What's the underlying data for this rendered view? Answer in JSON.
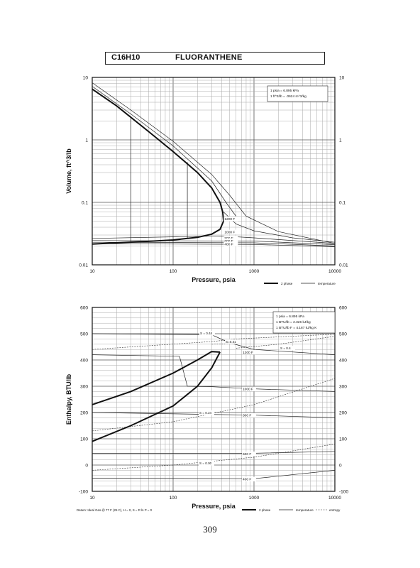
{
  "header": {
    "formula": "C16H10",
    "name": "FLUORANTHENE"
  },
  "page_number": "309",
  "chart_data": [
    {
      "type": "line",
      "title": "",
      "xlabel": "Pressure,  psia",
      "ylabel": "Volume, ft^3/lb",
      "x_scale": "log",
      "y_scale": "log",
      "xlim": [
        10,
        10000
      ],
      "ylim": [
        0.01,
        10
      ],
      "x_ticks": [
        "10",
        "100",
        "1000",
        "10000"
      ],
      "y_ticks_left": [
        "10",
        "1",
        "0.1",
        "0.01"
      ],
      "y_ticks_right": [
        "10",
        "1",
        "0.1",
        "0.01"
      ],
      "conversions": [
        "1 psia  =  6.895 kPa",
        "1 ft^3/lb  =  .0624 m^3/kg"
      ],
      "legend": [
        "2 phase",
        "temperature"
      ],
      "dome": {
        "liquid": [
          [
            10,
            0.0215
          ],
          [
            20,
            0.0225
          ],
          [
            50,
            0.0238
          ],
          [
            100,
            0.025
          ],
          [
            200,
            0.0275
          ],
          [
            300,
            0.031
          ],
          [
            380,
            0.037
          ],
          [
            420,
            0.05
          ]
        ],
        "vapor": [
          [
            420,
            0.05
          ],
          [
            410,
            0.07
          ],
          [
            380,
            0.1
          ],
          [
            300,
            0.17
          ],
          [
            200,
            0.3
          ],
          [
            100,
            0.65
          ],
          [
            50,
            1.35
          ],
          [
            20,
            3.5
          ],
          [
            10,
            6.5
          ]
        ]
      },
      "series": [
        {
          "label": "1200 F",
          "points": [
            [
              420,
              0.07
            ],
            [
              600,
              0.045
            ],
            [
              1000,
              0.035
            ],
            [
              3000,
              0.027
            ],
            [
              10000,
              0.023
            ]
          ]
        },
        {
          "label": "1000 F",
          "points": [
            [
              10,
              0.0265
            ],
            [
              400,
              0.029
            ],
            [
              1000,
              0.027
            ],
            [
              10000,
              0.022
            ]
          ]
        },
        {
          "label": "800 F",
          "points": [
            [
              10,
              0.0245
            ],
            [
              1000,
              0.024
            ],
            [
              10000,
              0.021
            ]
          ]
        },
        {
          "label": "600 F",
          "points": [
            [
              10,
              0.023
            ],
            [
              1000,
              0.0225
            ],
            [
              10000,
              0.02
            ]
          ]
        },
        {
          "label": "400 F",
          "points": [
            [
              10,
              0.0218
            ],
            [
              1000,
              0.0212
            ],
            [
              10000,
              0.0195
            ]
          ]
        }
      ],
      "isotherm_vapor": [
        {
          "points": [
            [
              10,
              8.2
            ],
            [
              30,
              3.0
            ],
            [
              100,
              0.95
            ],
            [
              300,
              0.28
            ],
            [
              500,
              0.13
            ],
            [
              800,
              0.06
            ],
            [
              2000,
              0.034
            ],
            [
              10000,
              0.022
            ]
          ]
        },
        {
          "points": [
            [
              10,
              7.2
            ],
            [
              30,
              2.6
            ],
            [
              100,
              0.8
            ],
            [
              300,
              0.22
            ],
            [
              450,
              0.1
            ],
            [
              600,
              0.06
            ]
          ]
        }
      ],
      "verticals": [
        {
          "x": 30,
          "from": 0.0232,
          "to": 2.2
        },
        {
          "x": 150,
          "from": 0.0262,
          "to": 0.44
        }
      ]
    },
    {
      "type": "line",
      "title": "",
      "xlabel": "Pressure,  psia",
      "ylabel": "Enthalpy, BTU/lb",
      "x_scale": "log",
      "xlim": [
        10,
        10000
      ],
      "ylim": [
        -100,
        600
      ],
      "x_ticks": [
        "10",
        "100",
        "1000",
        "10000"
      ],
      "y_ticks_left": [
        "600",
        "500",
        "400",
        "300",
        "200",
        "100",
        "0",
        "-100"
      ],
      "y_ticks_right": [
        "600",
        "500",
        "400",
        "300",
        "200",
        "100",
        "0",
        "-100"
      ],
      "conversions": [
        "1 psia  =  6.895 kPa",
        "1 BTU/lb  =  2.326 kJ/kg",
        "1 BTU/lb F  =  4.187 kJ/kg K"
      ],
      "datum": "Datum: Ideal Gas @ 77 F (25 C), H = 0, S = R ln P = 0",
      "legend": [
        "2 phase",
        "temperature",
        "entropy"
      ],
      "dome": {
        "liquid": [
          [
            10,
            90
          ],
          [
            30,
            150
          ],
          [
            100,
            225
          ],
          [
            200,
            300
          ],
          [
            300,
            370
          ],
          [
            380,
            430
          ]
        ],
        "vapor": [
          [
            380,
            430
          ],
          [
            300,
            432
          ],
          [
            200,
            400
          ],
          [
            100,
            350
          ],
          [
            30,
            280
          ],
          [
            10,
            230
          ]
        ]
      },
      "series": [
        {
          "label": "1200 F",
          "points": [
            [
              10,
              500
            ],
            [
              300,
              496
            ],
            [
              500,
              465
            ],
            [
              1000,
              440
            ],
            [
              10000,
              420
            ]
          ]
        },
        {
          "label": "1000 F",
          "points": [
            [
              10,
              420
            ],
            [
              120,
              414
            ],
            [
              150,
              300
            ],
            [
              300,
              298
            ],
            [
              1000,
              290
            ],
            [
              10000,
              280
            ]
          ]
        },
        {
          "label": "800 F",
          "points": [
            [
              10,
              200
            ],
            [
              1000,
              190
            ],
            [
              10000,
              180
            ]
          ]
        },
        {
          "label": "600 F",
          "points": [
            [
              10,
              45
            ],
            [
              1000,
              45
            ],
            [
              10000,
              52
            ]
          ]
        },
        {
          "label": "400 F",
          "points": [
            [
              10,
              -50
            ],
            [
              1000,
              -52
            ],
            [
              10000,
              -20
            ]
          ]
        }
      ],
      "entropy_lines": [
        {
          "label": "S = 0.44",
          "points": [
            [
              10,
              440
            ],
            [
              300,
              470
            ],
            [
              600,
              480
            ],
            [
              10000,
              498
            ]
          ]
        },
        {
          "label": "S = 0.4",
          "points": [
            [
              600,
              445
            ],
            [
              2000,
              460
            ],
            [
              10000,
              490
            ]
          ]
        },
        {
          "label": "S=0.41",
          "points": [
            [
              300,
              460
            ],
            [
              700,
              462
            ]
          ]
        },
        {
          "label": "S = 0.24",
          "points": [
            [
              10,
              130
            ],
            [
              100,
              165
            ],
            [
              1000,
              230
            ],
            [
              10000,
              330
            ]
          ]
        },
        {
          "label": "S = 0.00",
          "points": [
            [
              10,
              -20
            ],
            [
              100,
              0
            ],
            [
              1000,
              30
            ],
            [
              10000,
              80
            ]
          ]
        }
      ]
    }
  ]
}
